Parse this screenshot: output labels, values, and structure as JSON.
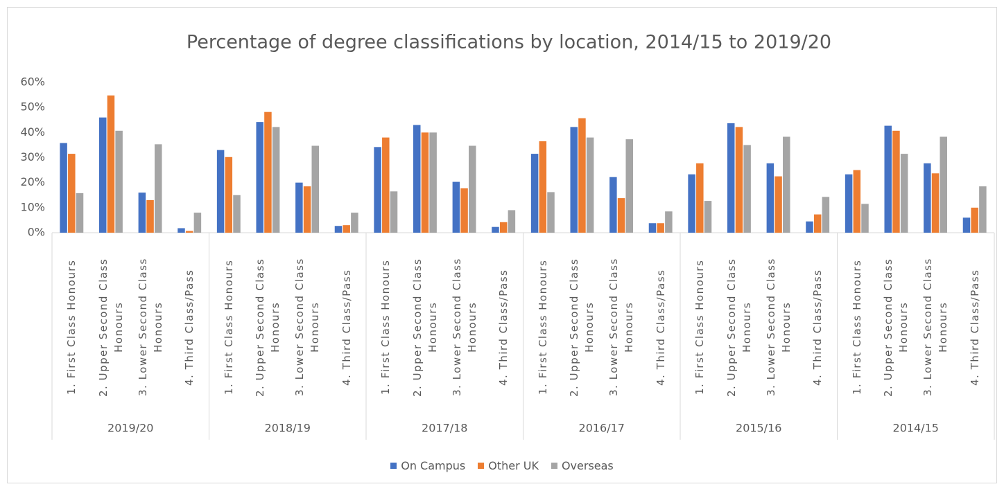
{
  "chart_data": {
    "type": "bar",
    "title": "Percentage of degree classifications by location, 2014/15 to 2019/20",
    "groups": [
      "2019/20",
      "2018/19",
      "2017/18",
      "2016/17",
      "2015/16",
      "2014/15"
    ],
    "categories": [
      "1. First Class Honours",
      "2. Upper Second Class Honours",
      "3. Lower Second Class Honours",
      "4. Third Class/Pass",
      "1. First Class Honours",
      "2. Upper Second Class Honours",
      "3. Lower Second Class Honours",
      "4. Third Class/Pass",
      "1. First Class Honours",
      "2. Upper Second Class Honours",
      "3. Lower Second Class Honours",
      "4. Third Class/Pass",
      "1. First Class Honours",
      "2. Upper Second Class Honours",
      "3. Lower Second Class Honours",
      "4. Third Class/Pass",
      "1. First Class Honours",
      "2. Upper Second Class Honours",
      "3. Lower Second Class Honours",
      "4. Third Class/Pass",
      "1. First Class Honours",
      "2. Upper Second Class Honours",
      "3. Lower Second Class Honours",
      "4. Third Class/Pass"
    ],
    "series": [
      {
        "name": "On Campus",
        "color": "#4472c4",
        "values": [
          35.8,
          46,
          16,
          1.8,
          33,
          44.2,
          20,
          2.7,
          34.2,
          43,
          20.3,
          2.3,
          31.5,
          42.2,
          22.2,
          3.8,
          23.3,
          43.7,
          27.7,
          4.5,
          23.3,
          42.7,
          27.7,
          6
        ]
      },
      {
        "name": "Other UK",
        "color": "#ed7d31",
        "values": [
          31.5,
          54.8,
          13,
          0.7,
          30.2,
          48.2,
          18.5,
          3,
          38,
          40,
          17.7,
          4.2,
          36.5,
          45.7,
          13.8,
          3.8,
          27.7,
          42.2,
          22.5,
          7.3,
          25,
          40.7,
          23.7,
          10
        ]
      },
      {
        "name": "Overseas",
        "color": "#a5a5a5",
        "values": [
          15.8,
          40.7,
          35.3,
          8,
          15,
          42.2,
          34.7,
          8,
          16.5,
          40,
          34.7,
          9,
          16.2,
          38,
          37.3,
          8.5,
          12.7,
          35,
          38.3,
          14.3,
          11.5,
          31.5,
          38.3,
          18.5
        ]
      }
    ],
    "ylim": [
      0,
      60
    ],
    "yticks": [
      {
        "value": 0,
        "label": "0%"
      },
      {
        "value": 10,
        "label": "10%"
      },
      {
        "value": 20,
        "label": "20%"
      },
      {
        "value": 30,
        "label": "30%"
      },
      {
        "value": 40,
        "label": "40%"
      },
      {
        "value": 50,
        "label": "50%"
      },
      {
        "value": 60,
        "label": "60%"
      }
    ],
    "grid": false,
    "legend": "bottom"
  }
}
